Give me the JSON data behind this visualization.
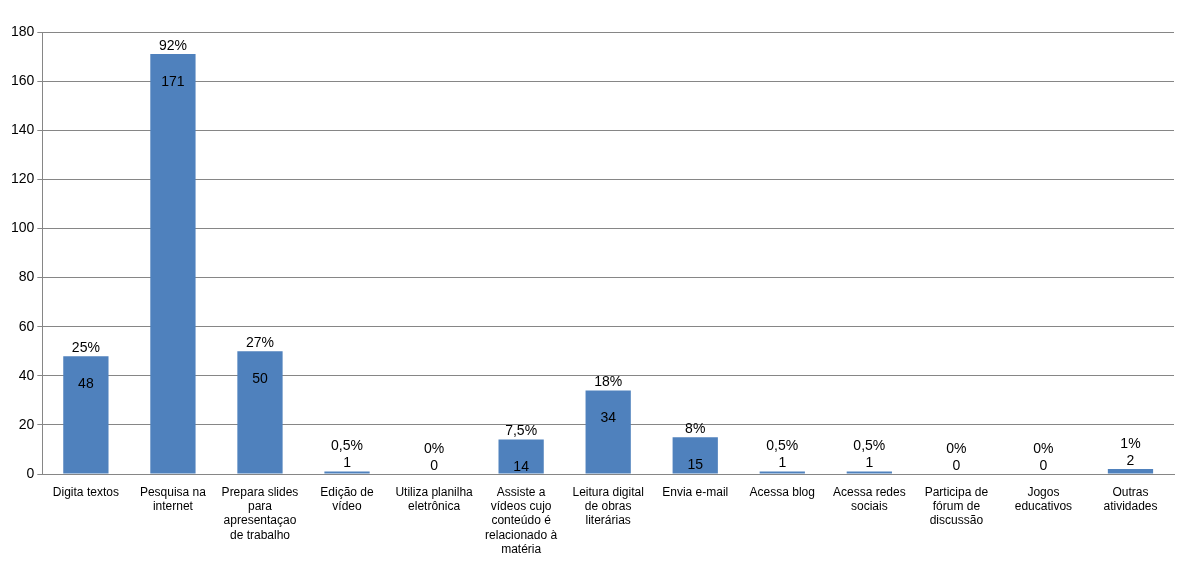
{
  "chart_data": {
    "type": "bar",
    "categories": [
      "Digita textos",
      "Pesquisa na internet",
      "Prepara slides para apresentaçao de trabalho",
      "Edição de vídeo",
      "Utiliza planilha eletrônica",
      "Assiste a vídeos cujo conteúdo é relacionado à matéria",
      "Leitura digital de obras literárias",
      "Envia e-mail",
      "Acessa blog",
      "Acessa redes sociais",
      "Participa de fórum de discussão",
      "Jogos educativos",
      "Outras atividades"
    ],
    "values": [
      48,
      171,
      50,
      1,
      0,
      14,
      34,
      15,
      1,
      1,
      0,
      0,
      2
    ],
    "color": "#4f81bd",
    "data_labels": true,
    "annotations": [
      {
        "text": "25%",
        "x": "Digita textos",
        "y": 48
      },
      {
        "text": "92%",
        "x": "Pesquisa na internet",
        "y": 171
      },
      {
        "text": "27%",
        "x": "Prepara slides para apresentaçao de trabalho",
        "y": 50
      },
      {
        "text": "0,5%",
        "x": "Edição de vídeo",
        "y": 1
      },
      {
        "text": "0%",
        "x": "Utiliza planilha eletrônica",
        "y": 0
      },
      {
        "text": "7,5%",
        "x": "Assiste a vídeos cujo conteúdo é relacionado à matéria",
        "y": 14
      },
      {
        "text": "18%",
        "x": "Leitura digital de obras literárias",
        "y": 34
      },
      {
        "text": "8%",
        "x": "Envia e-mail",
        "y": 15
      },
      {
        "text": "0,5%",
        "x": "Acessa blog",
        "y": 1
      },
      {
        "text": "0,5%",
        "x": "Acessa redes sociais",
        "y": 1
      },
      {
        "text": "0%",
        "x": "Participa de fórum de discussão",
        "y": 0
      },
      {
        "text": "0%",
        "x": "Jogos educativos",
        "y": 0
      },
      {
        "text": "1%",
        "x": "Outras atividades",
        "y": 2
      }
    ],
    "ylim": [
      0,
      180
    ],
    "yticks": [
      0,
      20,
      40,
      60,
      80,
      100,
      120,
      140,
      160,
      180
    ],
    "grid": "y",
    "legend": false
  }
}
